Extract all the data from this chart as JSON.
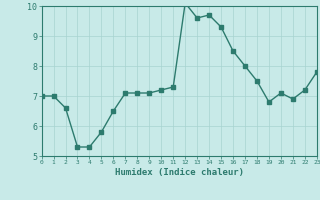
{
  "x": [
    0,
    1,
    2,
    3,
    4,
    5,
    6,
    7,
    8,
    9,
    10,
    11,
    12,
    13,
    14,
    15,
    16,
    17,
    18,
    19,
    20,
    21,
    22,
    23
  ],
  "y": [
    7.0,
    7.0,
    6.6,
    5.3,
    5.3,
    5.8,
    6.5,
    7.1,
    7.1,
    7.1,
    7.2,
    7.3,
    10.1,
    9.6,
    9.7,
    9.3,
    8.5,
    8.0,
    7.5,
    6.8,
    7.1,
    6.9,
    7.2,
    7.8
  ],
  "xlabel": "Humidex (Indice chaleur)",
  "ylim": [
    5,
    10
  ],
  "xlim": [
    0,
    23
  ],
  "yticks": [
    5,
    6,
    7,
    8,
    9,
    10
  ],
  "xticks": [
    0,
    1,
    2,
    3,
    4,
    5,
    6,
    7,
    8,
    9,
    10,
    11,
    12,
    13,
    14,
    15,
    16,
    17,
    18,
    19,
    20,
    21,
    22,
    23
  ],
  "line_color": "#2d7b6e",
  "bg_color": "#c8eae8",
  "grid_color": "#a8d4d0",
  "tick_color": "#2d7b6e",
  "label_color": "#2d7b6e",
  "marker": "s",
  "markersize": 2.5,
  "linewidth": 1.0
}
